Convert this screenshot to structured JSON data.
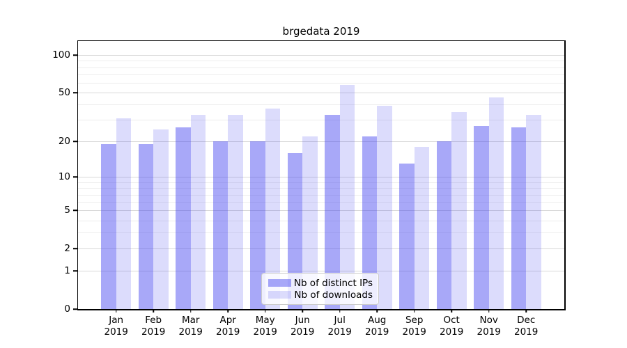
{
  "figure": {
    "title": "brgedata 2019"
  },
  "chart_data": {
    "type": "bar",
    "title": "brgedata 2019",
    "categories": [
      "Jan 2019",
      "Feb 2019",
      "Mar 2019",
      "Apr 2019",
      "May 2019",
      "Jun 2019",
      "Jul 2019",
      "Aug 2019",
      "Sep 2019",
      "Oct 2019",
      "Nov 2019",
      "Dec 2019"
    ],
    "x_tick_line1": [
      "Jan",
      "Feb",
      "Mar",
      "Apr",
      "May",
      "Jun",
      "Jul",
      "Aug",
      "Sep",
      "Oct",
      "Nov",
      "Dec"
    ],
    "x_tick_line2": "2019",
    "series": [
      {
        "name": "Nb of distinct IPs",
        "values": [
          19,
          19,
          26,
          20,
          20,
          16,
          33,
          22,
          13,
          20,
          27,
          26
        ],
        "color": "rgba(70,70,240,0.47)"
      },
      {
        "name": "Nb of downloads",
        "values": [
          31,
          25,
          33,
          33,
          37,
          22,
          58,
          39,
          18,
          35,
          46,
          33
        ],
        "color": "rgba(70,70,240,0.19)"
      }
    ],
    "xlabel": "",
    "ylabel": "",
    "yscale": "log1p",
    "ylim": [
      0,
      129
    ],
    "y_major_ticks": [
      100,
      50,
      20,
      10,
      5,
      2,
      1,
      0
    ],
    "y_minor_gridlines": [
      3,
      4,
      6,
      7,
      8,
      9,
      30,
      40,
      60,
      70,
      80,
      90
    ],
    "grid": true,
    "legend_position": "lower center"
  },
  "colors": {
    "bar_dark": "rgba(70,70,240,0.47)",
    "bar_light": "rgba(70,70,240,0.19)",
    "major_grid": "#d8d8d8",
    "minor_grid": "#ededed",
    "axis": "#000000",
    "legend_border": "#cccccc",
    "legend_background": "rgba(255,255,255,0.8)"
  }
}
